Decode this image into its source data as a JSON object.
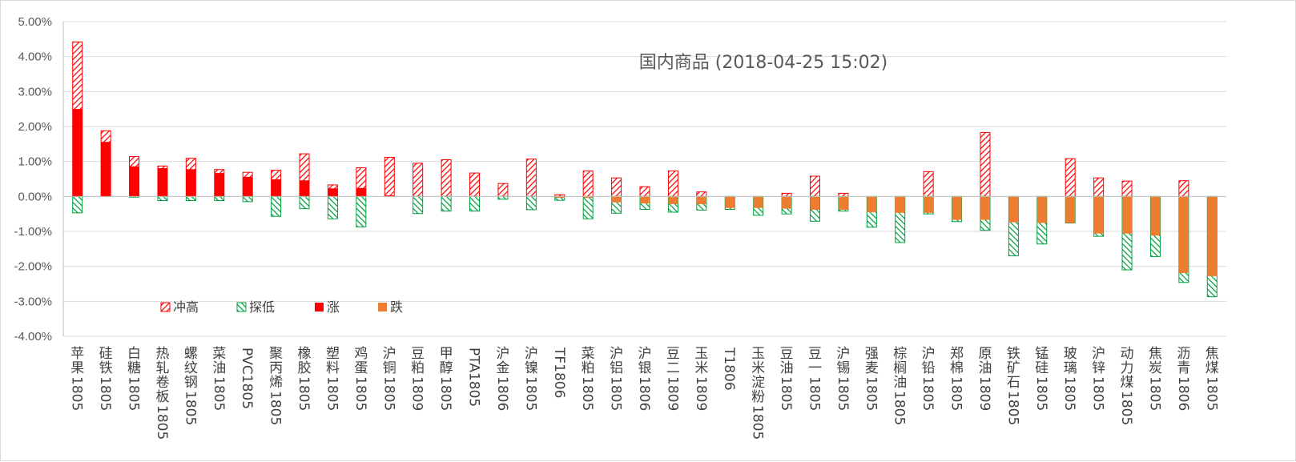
{
  "chart_data": {
    "type": "bar",
    "title": "国内商品 (2018-04-25 15:02)",
    "ylim": [
      -4,
      5
    ],
    "ytick_step": 1,
    "ytick_format": "percent_2dp",
    "grid": true,
    "legend_position": "bottom-left-inside",
    "categories": [
      "苹果1805",
      "硅铁1805",
      "白糖1805",
      "热轧卷板1805",
      "螺纹钢1805",
      "菜油1805",
      "PVC1805",
      "聚丙烯1805",
      "橡胶1805",
      "塑料1805",
      "鸡蛋1805",
      "沪铜1805",
      "豆粕1809",
      "甲醇1805",
      "PTA1805",
      "沪金1806",
      "沪镍1805",
      "TF1806",
      "菜粕1805",
      "沪铝1805",
      "沪银1806",
      "豆二1809",
      "玉米1809",
      "T1806",
      "玉米淀粉1805",
      "豆油1805",
      "豆一1805",
      "沪锡1805",
      "强麦1805",
      "棕榈油1805",
      "沪铅1805",
      "郑棉1805",
      "原油1809",
      "铁矿石1805",
      "锰硅1805",
      "玻璃1805",
      "沪锌1805",
      "动力煤1805",
      "焦炭1805",
      "沥青1806",
      "焦煤1805"
    ],
    "series": [
      {
        "name": "冲高",
        "values": [
          4.42,
          1.88,
          1.14,
          0.87,
          1.09,
          0.77,
          0.69,
          0.75,
          1.22,
          0.33,
          0.82,
          1.12,
          0.95,
          1.05,
          0.67,
          0.37,
          1.07,
          0.05,
          0.73,
          0.53,
          0.28,
          0.73,
          0.13,
          0,
          0,
          0.09,
          0.58,
          0.09,
          0,
          0,
          0.71,
          0,
          1.83,
          0,
          0,
          1.08,
          0.53,
          0.44,
          0,
          0.45,
          0
        ]
      },
      {
        "name": "探低",
        "values": [
          -0.47,
          0,
          -0.02,
          -0.12,
          -0.12,
          -0.12,
          -0.15,
          -0.57,
          -0.35,
          -0.64,
          -0.87,
          0,
          -0.49,
          -0.42,
          -0.42,
          -0.08,
          -0.38,
          -0.11,
          -0.64,
          -0.48,
          -0.37,
          -0.45,
          -0.39,
          -0.37,
          -0.54,
          -0.5,
          -0.71,
          -0.42,
          -0.88,
          -1.32,
          -0.5,
          -0.72,
          -0.97,
          -1.7,
          -1.36,
          -0.76,
          -1.14,
          -2.1,
          -1.72,
          -2.46,
          -2.87
        ]
      },
      {
        "name": "涨",
        "values": [
          2.5,
          1.56,
          0.86,
          0.81,
          0.78,
          0.67,
          0.56,
          0.49,
          0.46,
          0.23,
          0.24,
          0.03,
          0,
          0,
          0,
          0,
          0,
          0,
          0,
          0,
          0,
          0,
          0,
          0,
          0,
          0,
          0,
          0,
          0,
          0,
          0,
          0,
          0,
          0,
          0,
          0,
          0,
          0,
          0,
          0,
          0
        ]
      },
      {
        "name": "跌",
        "values": [
          0,
          0,
          0,
          0,
          0,
          0,
          0,
          0,
          0,
          0,
          0,
          0,
          0,
          0,
          0,
          0,
          0,
          -0.04,
          -0.04,
          -0.17,
          -0.2,
          -0.22,
          -0.22,
          -0.33,
          -0.33,
          -0.35,
          -0.38,
          -0.38,
          -0.45,
          -0.47,
          -0.47,
          -0.67,
          -0.67,
          -0.74,
          -0.76,
          -0.76,
          -1.06,
          -1.06,
          -1.12,
          -2.19,
          -2.28
        ]
      }
    ]
  },
  "colors": {
    "up_hatch": "#ff0000",
    "down_hatch": "#00a040",
    "up_solid": "#ff0000",
    "down_solid": "#ed7d31",
    "grid": "#d9d9d9",
    "axis": "#bfbfbf"
  }
}
